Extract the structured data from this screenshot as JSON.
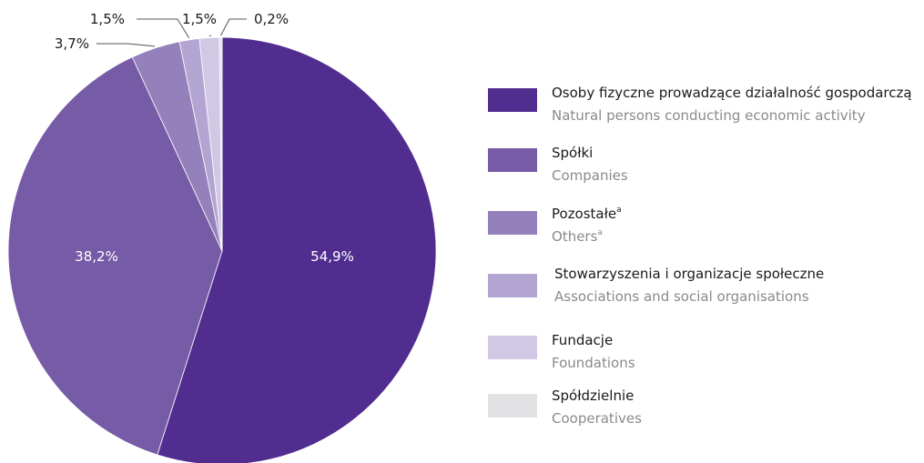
{
  "chart_data": {
    "type": "pie",
    "start_angle_deg": 0,
    "direction": "clockwise",
    "slices": [
      {
        "label": "Osoby fizyczne prowadzące działalność gospodarczą",
        "label_en": "Natural persons conducting economic activity",
        "value": 54.9,
        "value_label": "54,9%",
        "color": "#512d90"
      },
      {
        "label": "Spółki",
        "label_en": "Companies",
        "value": 38.2,
        "value_label": "38,2%",
        "color": "#765ba6"
      },
      {
        "label": "Pozostałe",
        "label_en": "Others",
        "footnote": "a",
        "value": 3.7,
        "value_label": "3,7%",
        "color": "#9480bb"
      },
      {
        "label": "Stowarzyszenia i organizacje społeczne",
        "label_en": "Associations and social organisations",
        "value": 1.5,
        "value_label": "1,5%",
        "color": "#b3a5d1"
      },
      {
        "label": "Fundacje",
        "label_en": "Foundations",
        "value": 1.5,
        "value_label": "1,5%",
        "color": "#d1c8e6"
      },
      {
        "label": "Spółdzielnie",
        "label_en": "Cooperatives",
        "value": 0.2,
        "value_label": "0,2%",
        "color": "#e2e2e4"
      }
    ],
    "legend_position": "right",
    "value_label_colors": {
      "inside": "#ffffff",
      "outside": "#1a1a1a",
      "leader": "#555555"
    }
  }
}
